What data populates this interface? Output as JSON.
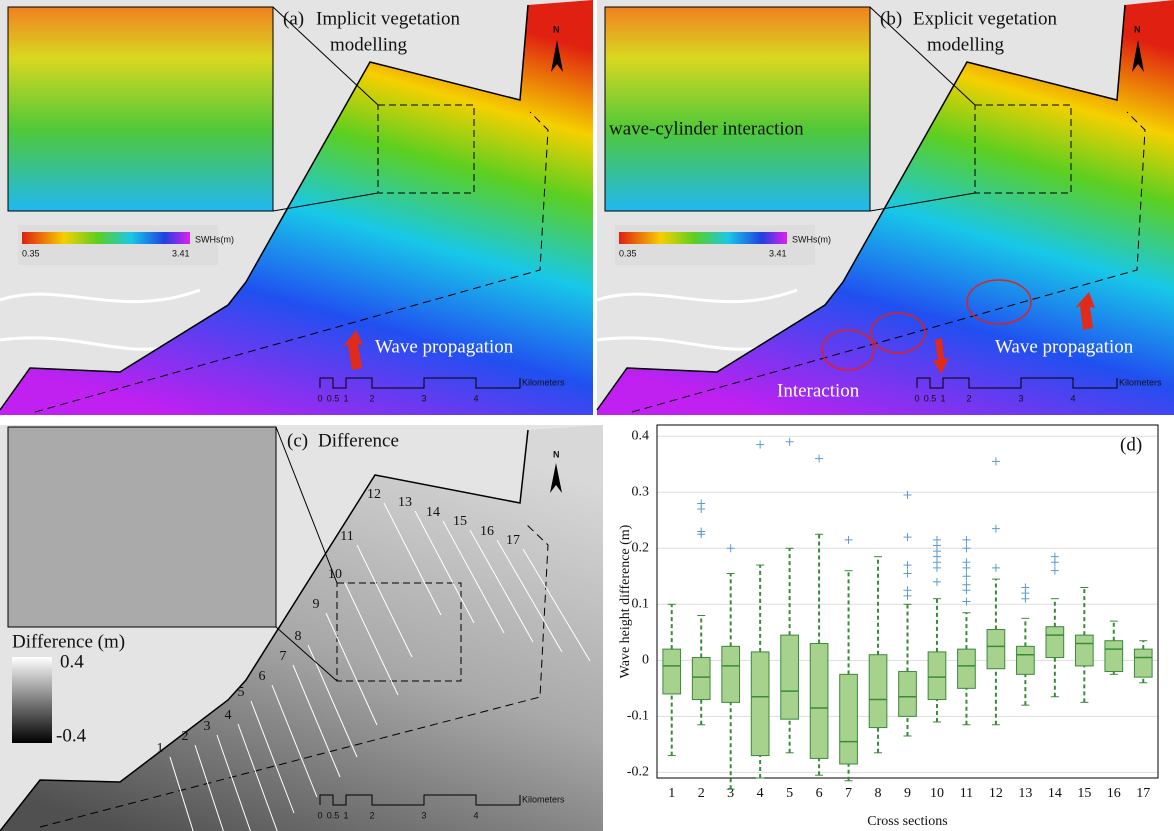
{
  "maps": {
    "a": {
      "label": "(a)",
      "title": [
        "Implicit vegetation",
        "modelling"
      ],
      "north": "N",
      "colorbar": {
        "title": "SWHs(m)",
        "min": "0.35",
        "max": "3.41"
      },
      "annotation": "Wave propagation",
      "scalebar": {
        "ticks": [
          "0",
          "0.5",
          "1",
          "2",
          "3",
          "4"
        ],
        "unit": "Kilometers"
      }
    },
    "b": {
      "label": "(b)",
      "title": [
        "Explicit vegetation",
        "modelling"
      ],
      "north": "N",
      "inset_text": "wave-cylinder interaction",
      "colorbar": {
        "title": "SWHs(m)",
        "min": "0.35",
        "max": "3.41"
      },
      "annotation": "Wave propagation",
      "annotation2": "Interaction",
      "scalebar": {
        "ticks": [
          "0",
          "0.5",
          "1",
          "2",
          "3",
          "4"
        ],
        "unit": "Kilometers"
      }
    },
    "c": {
      "label": "(c)",
      "title": "Difference",
      "north": "N",
      "legend": {
        "title": "Difference (m)",
        "max": "0.4",
        "min": "-0.4"
      },
      "sections": [
        "1",
        "2",
        "3",
        "4",
        "5",
        "6",
        "7",
        "8",
        "9",
        "10",
        "11",
        "12",
        "13",
        "14",
        "15",
        "16",
        "17"
      ],
      "scalebar": {
        "ticks": [
          "0",
          "0.5",
          "1",
          "2",
          "3",
          "4"
        ],
        "unit": "Kilometers"
      }
    }
  },
  "chart_data": {
    "type": "box",
    "panel_label": "(d)",
    "x_label": "Cross sections",
    "y_label": "Wave height difference (m)",
    "categories": [
      "1",
      "2",
      "3",
      "4",
      "5",
      "6",
      "7",
      "8",
      "9",
      "10",
      "11",
      "12",
      "13",
      "14",
      "15",
      "16",
      "17"
    ],
    "ylim": [
      -0.21,
      0.42
    ],
    "yticks": [
      -0.2,
      -0.1,
      0,
      0.1,
      0.2,
      0.3,
      0.4
    ],
    "grid": true,
    "color": "#a6d28e",
    "edge_color": "#3a8a3a",
    "outlier_color": "#5b9bd5",
    "boxes": [
      {
        "low": -0.17,
        "q1": -0.06,
        "median": -0.01,
        "q3": 0.02,
        "high": 0.1,
        "outliers": []
      },
      {
        "low": -0.115,
        "q1": -0.07,
        "median": -0.03,
        "q3": 0.005,
        "high": 0.08,
        "outliers": [
          0.28,
          0.27,
          0.23,
          0.225
        ]
      },
      {
        "low": -0.23,
        "q1": -0.075,
        "median": -0.01,
        "q3": 0.025,
        "high": 0.155,
        "outliers": [
          0.2
        ]
      },
      {
        "low": -0.21,
        "q1": -0.17,
        "median": -0.065,
        "q3": 0.015,
        "high": 0.17,
        "outliers": [
          0.385
        ]
      },
      {
        "low": -0.165,
        "q1": -0.105,
        "median": -0.055,
        "q3": 0.045,
        "high": 0.2,
        "outliers": [
          0.39
        ]
      },
      {
        "low": -0.205,
        "q1": -0.175,
        "median": -0.085,
        "q3": 0.03,
        "high": 0.225,
        "outliers": [
          0.36
        ]
      },
      {
        "low": -0.215,
        "q1": -0.185,
        "median": -0.145,
        "q3": -0.025,
        "high": 0.16,
        "outliers": [
          0.215
        ]
      },
      {
        "low": -0.165,
        "q1": -0.12,
        "median": -0.07,
        "q3": 0.01,
        "high": 0.185,
        "outliers": []
      },
      {
        "low": -0.135,
        "q1": -0.1,
        "median": -0.065,
        "q3": -0.02,
        "high": 0.1,
        "outliers": [
          0.295,
          0.22,
          0.17,
          0.155,
          0.125,
          0.115
        ]
      },
      {
        "low": -0.11,
        "q1": -0.07,
        "median": -0.03,
        "q3": 0.015,
        "high": 0.11,
        "outliers": [
          0.215,
          0.205,
          0.195,
          0.185,
          0.175,
          0.165,
          0.14
        ]
      },
      {
        "low": -0.115,
        "q1": -0.05,
        "median": -0.01,
        "q3": 0.02,
        "high": 0.085,
        "outliers": [
          0.215,
          0.2,
          0.175,
          0.165,
          0.15,
          0.135,
          0.125,
          0.105
        ]
      },
      {
        "low": -0.115,
        "q1": -0.015,
        "median": 0.025,
        "q3": 0.055,
        "high": 0.145,
        "outliers": [
          0.355,
          0.235,
          0.165
        ]
      },
      {
        "low": -0.08,
        "q1": -0.025,
        "median": 0.01,
        "q3": 0.025,
        "high": 0.075,
        "outliers": [
          0.13,
          0.12,
          0.11
        ]
      },
      {
        "low": -0.065,
        "q1": 0.005,
        "median": 0.045,
        "q3": 0.06,
        "high": 0.11,
        "outliers": [
          0.185,
          0.175,
          0.16
        ]
      },
      {
        "low": -0.075,
        "q1": -0.01,
        "median": 0.03,
        "q3": 0.045,
        "high": 0.13,
        "outliers": []
      },
      {
        "low": -0.025,
        "q1": -0.02,
        "median": 0.02,
        "q3": 0.035,
        "high": 0.07,
        "outliers": []
      },
      {
        "low": -0.04,
        "q1": -0.03,
        "median": 0.005,
        "q3": 0.02,
        "high": 0.035,
        "outliers": []
      }
    ]
  }
}
